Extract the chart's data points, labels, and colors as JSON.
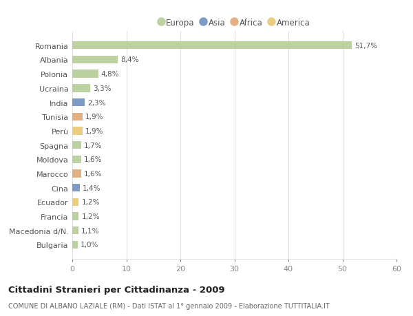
{
  "countries": [
    "Romania",
    "Albania",
    "Polonia",
    "Ucraina",
    "India",
    "Tunisia",
    "Perù",
    "Spagna",
    "Moldova",
    "Marocco",
    "Cina",
    "Ecuador",
    "Francia",
    "Macedonia d/N.",
    "Bulgaria"
  ],
  "values": [
    51.7,
    8.4,
    4.8,
    3.3,
    2.3,
    1.9,
    1.9,
    1.7,
    1.6,
    1.6,
    1.4,
    1.2,
    1.2,
    1.1,
    1.0
  ],
  "labels": [
    "51,7%",
    "8,4%",
    "4,8%",
    "3,3%",
    "2,3%",
    "1,9%",
    "1,9%",
    "1,7%",
    "1,6%",
    "1,6%",
    "1,4%",
    "1,2%",
    "1,2%",
    "1,1%",
    "1,0%"
  ],
  "continents": [
    "Europa",
    "Europa",
    "Europa",
    "Europa",
    "Asia",
    "Africa",
    "America",
    "Europa",
    "Europa",
    "Africa",
    "Asia",
    "America",
    "Europa",
    "Europa",
    "Europa"
  ],
  "colors": {
    "Europa": "#b5cc96",
    "Asia": "#7090c0",
    "Africa": "#e0a878",
    "America": "#e8c870"
  },
  "legend_order": [
    "Europa",
    "Asia",
    "Africa",
    "America"
  ],
  "title": "Cittadini Stranieri per Cittadinanza - 2009",
  "subtitle": "COMUNE DI ALBANO LAZIALE (RM) - Dati ISTAT al 1° gennaio 2009 - Elaborazione TUTTITALIA.IT",
  "xlim": [
    0,
    60
  ],
  "xticks": [
    0,
    10,
    20,
    30,
    40,
    50,
    60
  ],
  "background_color": "#ffffff",
  "grid_color": "#e0e0e0"
}
